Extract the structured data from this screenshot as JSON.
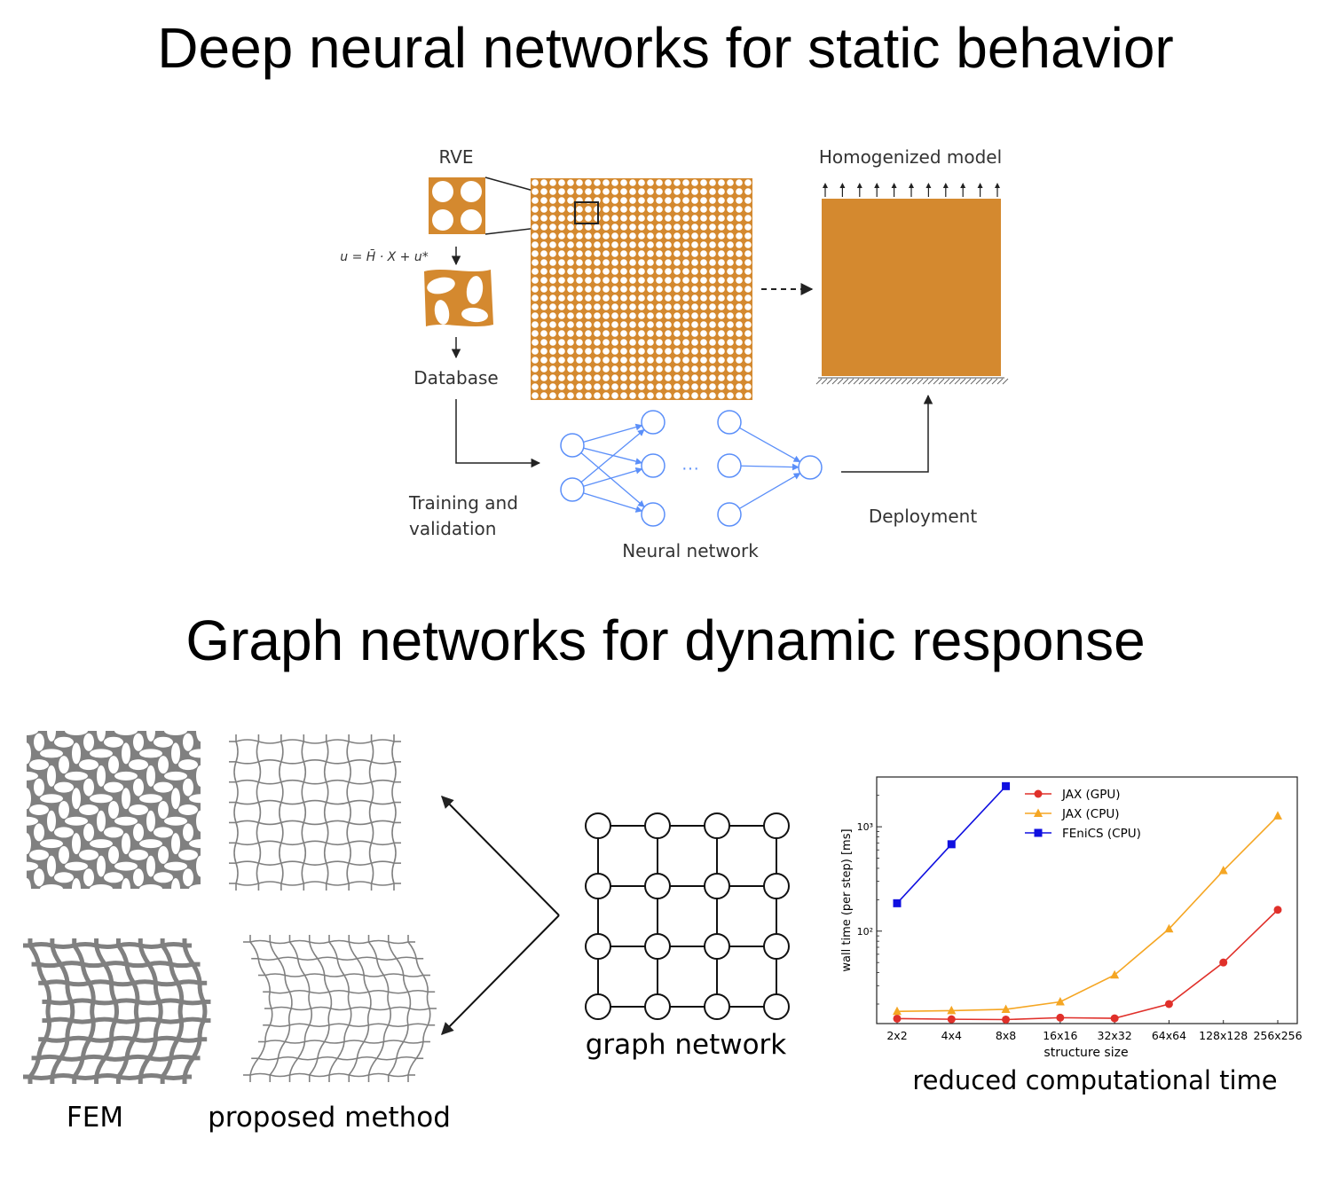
{
  "titles": {
    "top": "Deep neural networks for static behavior",
    "bottom": "Graph networks for dynamic response"
  },
  "static_diagram": {
    "rve_label": "RVE",
    "equation": "u = H̄ · X + u*",
    "database_label": "Database",
    "training_label_line1": "Training and",
    "training_label_line2": "validation",
    "neural_network_label": "Neural network",
    "nn_ellipsis": "···",
    "homogenized_label": "Homogenized model",
    "deployment_label": "Deployment",
    "material_color": "#d4892f",
    "network_color": "#5b8ff9"
  },
  "dynamic_diagram": {
    "fem_label": "FEM",
    "proposed_label": "proposed method",
    "graph_label": "graph network",
    "chart_caption": "reduced computational time",
    "structure_color": "#808080"
  },
  "chart_data": {
    "type": "line",
    "xlabel": "structure size",
    "ylabel": "wall time (per step) [ms]",
    "categories": [
      "2x2",
      "4x4",
      "8x8",
      "16x16",
      "32x32",
      "64x64",
      "128x128",
      "256x256"
    ],
    "yscale": "log",
    "ylim": [
      13,
      3000
    ],
    "ytick_labels": [
      "10²",
      "10³"
    ],
    "legend_position": "top-center",
    "series": [
      {
        "name": "JAX (GPU)",
        "color": "#e0302a",
        "marker": "circle",
        "values": [
          14.5,
          14.3,
          14.2,
          14.8,
          14.6,
          20,
          50,
          160
        ]
      },
      {
        "name": "JAX (CPU)",
        "color": "#f5a623",
        "marker": "triangle",
        "values": [
          17,
          17.3,
          17.8,
          21,
          38,
          105,
          380,
          1270
        ]
      },
      {
        "name": "FEniCS (CPU)",
        "color": "#1010e0",
        "marker": "square",
        "values": [
          185,
          680,
          2450,
          null,
          null,
          null,
          null,
          null
        ]
      }
    ]
  }
}
